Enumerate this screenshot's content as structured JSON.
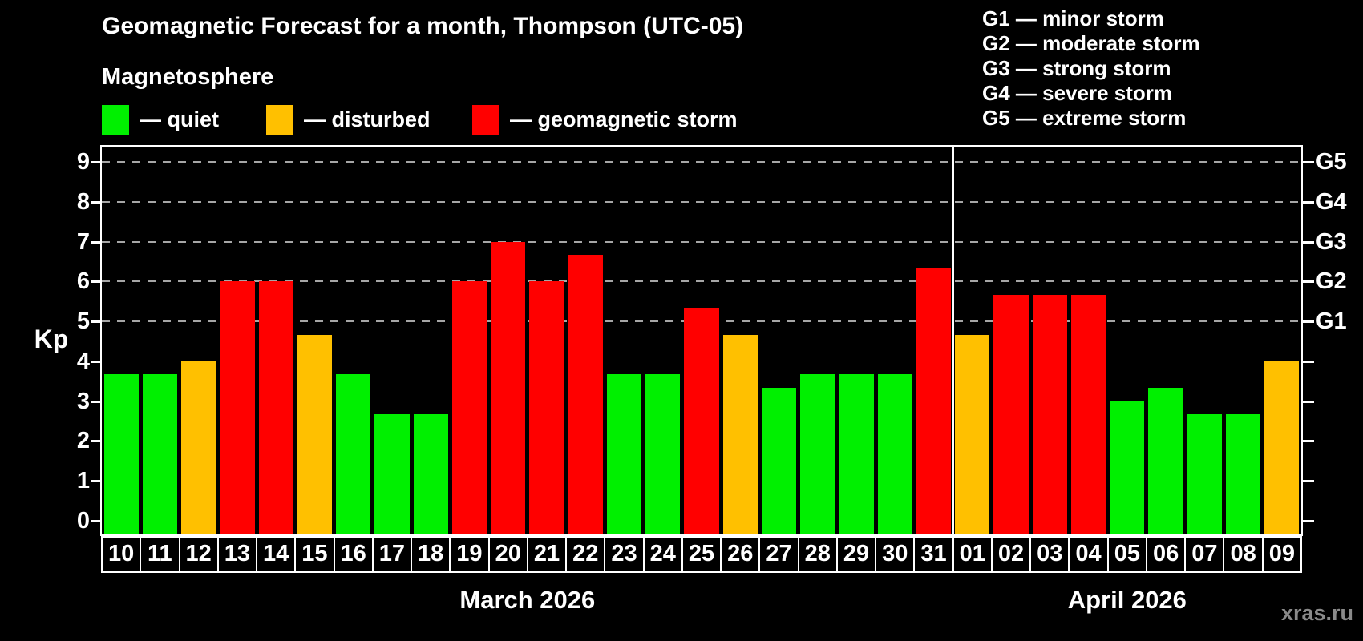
{
  "header": {
    "title": "Geomagnetic Forecast for a month, Thompson (UTC-05)",
    "subtitle": "Magnetosphere",
    "legend": [
      {
        "key": "quiet",
        "label": "— quiet"
      },
      {
        "key": "disturbed",
        "label": "— disturbed"
      },
      {
        "key": "storm",
        "label": "— geomagnetic storm"
      }
    ],
    "g_scale_legend": [
      "G1 — minor storm",
      "G2 — moderate storm",
      "G3 — strong storm",
      "G4 — severe storm",
      "G5 — extreme storm"
    ]
  },
  "colors": {
    "quiet": "#00f000",
    "disturbed": "#ffc000",
    "storm": "#ff0000",
    "axis": "#ffffff",
    "grid": "#a6a6a6",
    "background": "#000000",
    "watermark": "#8a8a8a"
  },
  "chart_data": {
    "type": "bar",
    "title": "Geomagnetic Forecast for a month, Thompson (UTC-05)",
    "ylabel": "Kp",
    "ylim": [
      0,
      9
    ],
    "yticks": [
      0,
      1,
      2,
      3,
      4,
      5,
      6,
      7,
      8,
      9
    ],
    "gridlines_at_kp": [
      5,
      6,
      7,
      8,
      9
    ],
    "grid": "dashed horizontal lines at storm levels only",
    "legend_position": "top-left",
    "right_axis": [
      {
        "kp": 5,
        "label": "G1"
      },
      {
        "kp": 6,
        "label": "G2"
      },
      {
        "kp": 7,
        "label": "G3"
      },
      {
        "kp": 8,
        "label": "G4"
      },
      {
        "kp": 9,
        "label": "G5"
      }
    ],
    "months": [
      {
        "label": "March 2026",
        "days": [
          {
            "day": "10",
            "kp": 3.67,
            "status": "quiet"
          },
          {
            "day": "11",
            "kp": 3.67,
            "status": "quiet"
          },
          {
            "day": "12",
            "kp": 4.0,
            "status": "disturbed"
          },
          {
            "day": "13",
            "kp": 6.0,
            "status": "storm"
          },
          {
            "day": "14",
            "kp": 6.0,
            "status": "storm"
          },
          {
            "day": "15",
            "kp": 4.67,
            "status": "disturbed"
          },
          {
            "day": "16",
            "kp": 3.67,
            "status": "quiet"
          },
          {
            "day": "17",
            "kp": 2.67,
            "status": "quiet"
          },
          {
            "day": "18",
            "kp": 2.67,
            "status": "quiet"
          },
          {
            "day": "19",
            "kp": 6.0,
            "status": "storm"
          },
          {
            "day": "20",
            "kp": 7.0,
            "status": "storm"
          },
          {
            "day": "21",
            "kp": 6.0,
            "status": "storm"
          },
          {
            "day": "22",
            "kp": 6.67,
            "status": "storm"
          },
          {
            "day": "23",
            "kp": 3.67,
            "status": "quiet"
          },
          {
            "day": "24",
            "kp": 3.67,
            "status": "quiet"
          },
          {
            "day": "25",
            "kp": 5.33,
            "status": "storm"
          },
          {
            "day": "26",
            "kp": 4.67,
            "status": "disturbed"
          },
          {
            "day": "27",
            "kp": 3.33,
            "status": "quiet"
          },
          {
            "day": "28",
            "kp": 3.67,
            "status": "quiet"
          },
          {
            "day": "29",
            "kp": 3.67,
            "status": "quiet"
          },
          {
            "day": "30",
            "kp": 3.67,
            "status": "quiet"
          },
          {
            "day": "31",
            "kp": 6.33,
            "status": "storm"
          }
        ]
      },
      {
        "label": "April 2026",
        "days": [
          {
            "day": "01",
            "kp": 4.67,
            "status": "disturbed"
          },
          {
            "day": "02",
            "kp": 5.67,
            "status": "storm"
          },
          {
            "day": "03",
            "kp": 5.67,
            "status": "storm"
          },
          {
            "day": "04",
            "kp": 5.67,
            "status": "storm"
          },
          {
            "day": "05",
            "kp": 3.0,
            "status": "quiet"
          },
          {
            "day": "06",
            "kp": 3.33,
            "status": "quiet"
          },
          {
            "day": "07",
            "kp": 2.67,
            "status": "quiet"
          },
          {
            "day": "08",
            "kp": 2.67,
            "status": "quiet"
          },
          {
            "day": "09",
            "kp": 4.0,
            "status": "disturbed"
          }
        ]
      }
    ]
  },
  "watermark": "xras.ru"
}
